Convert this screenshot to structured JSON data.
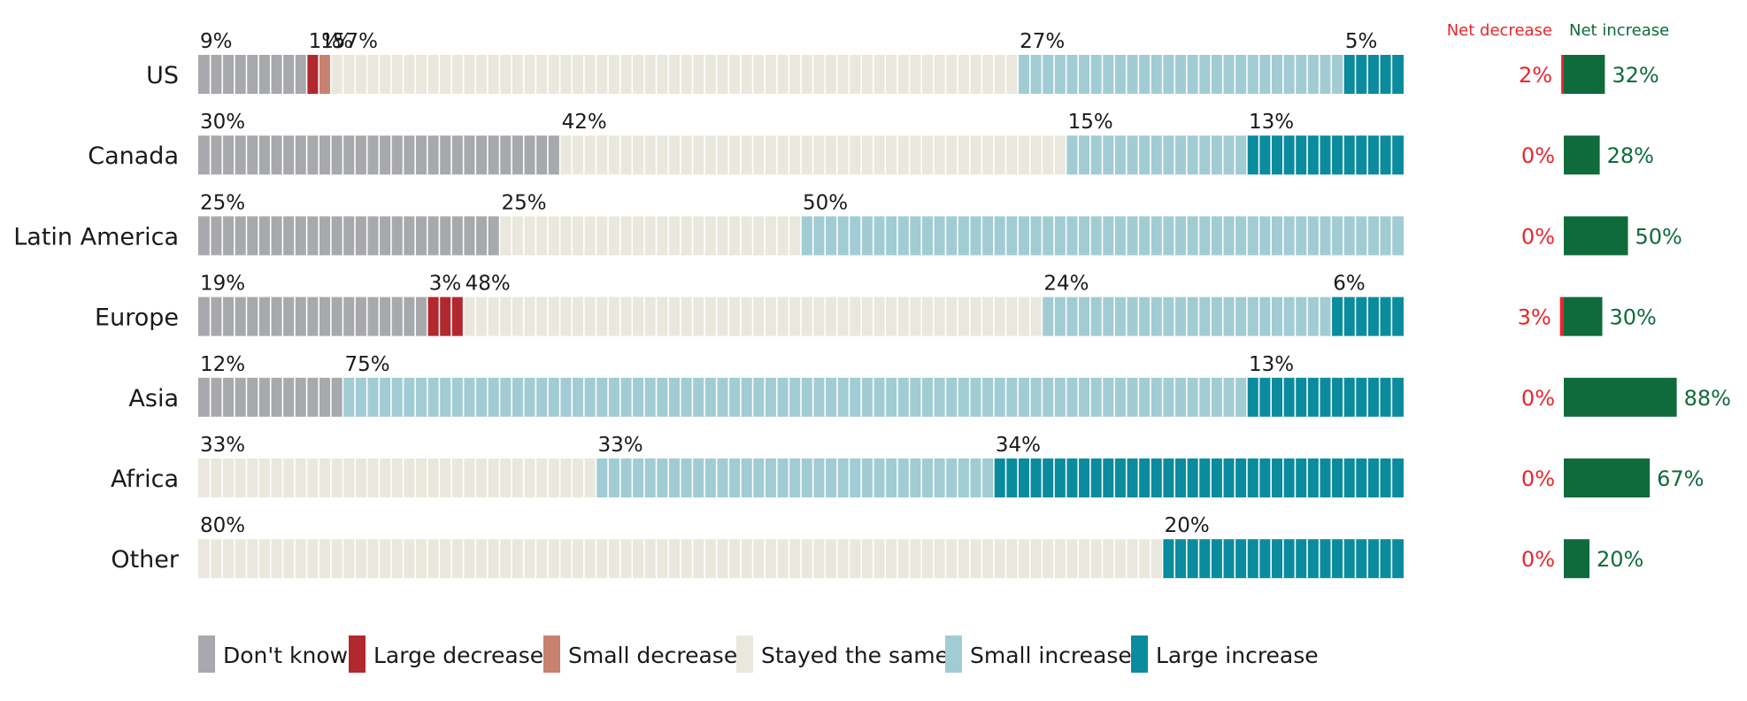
{
  "chart_data": {
    "type": "bar",
    "stacked": true,
    "orientation": "horizontal",
    "categories": [
      "US",
      "Canada",
      "Latin America",
      "Europe",
      "Asia",
      "Africa",
      "Other"
    ],
    "series": [
      {
        "name": "Don't know",
        "color": "#a7a9ac",
        "values": [
          9,
          30,
          25,
          19,
          12,
          0,
          0
        ]
      },
      {
        "name": "Large decrease",
        "color": "#b1282e",
        "values": [
          1,
          0,
          0,
          3,
          0,
          0,
          0
        ]
      },
      {
        "name": "Small decrease",
        "color": "#c98170",
        "values": [
          1,
          0,
          0,
          0,
          0,
          0,
          0
        ]
      },
      {
        "name": "Stayed the same",
        "color": "#eae8dc",
        "values": [
          57,
          42,
          25,
          48,
          0,
          33,
          80
        ]
      },
      {
        "name": "Small increase",
        "color": "#a1ccd3",
        "values": [
          27,
          15,
          50,
          24,
          75,
          33,
          0
        ]
      },
      {
        "name": "Large increase",
        "color": "#0b8b9e",
        "values": [
          5,
          13,
          0,
          6,
          13,
          34,
          20
        ]
      }
    ],
    "xlim": [
      0,
      100
    ],
    "net": {
      "decrease_label": "Net decrease",
      "increase_label": "Net increase",
      "decrease_color": "#e8262d",
      "increase_color": "#0f6b3b",
      "decrease": [
        2,
        0,
        0,
        3,
        0,
        0,
        0
      ],
      "increase": [
        32,
        28,
        50,
        30,
        88,
        67,
        20
      ]
    },
    "legend_position": "bottom-left"
  }
}
